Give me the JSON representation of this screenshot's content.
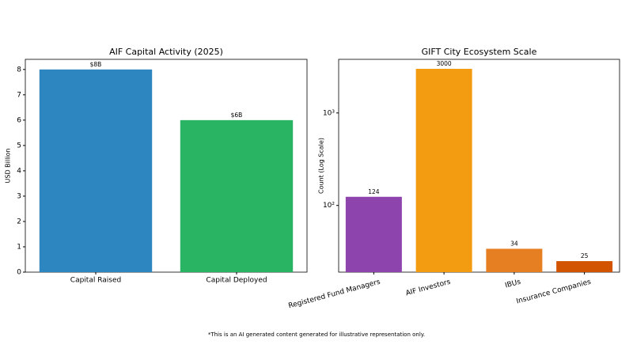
{
  "chart_data": [
    {
      "type": "bar",
      "title": "AIF Capital Activity (2025)",
      "ylabel": "USD Billion",
      "categories": [
        "Capital Raised",
        "Capital Deployed"
      ],
      "values": [
        8,
        6
      ],
      "value_labels": [
        "$8B",
        "$6B"
      ],
      "colors": [
        "#2e86c1",
        "#28b463"
      ],
      "ylim": [
        0,
        8.4
      ],
      "yticks": [
        0,
        1,
        2,
        3,
        4,
        5,
        6,
        7,
        8
      ],
      "log_scale": false
    },
    {
      "type": "bar",
      "title": "GIFT City Ecosystem Scale",
      "ylabel": "Count (Log Scale)",
      "categories": [
        "Registered Fund Managers",
        "AIF Investors",
        "IBUs",
        "Insurance Companies"
      ],
      "values": [
        124,
        3000,
        34,
        25
      ],
      "colors": [
        "#8e44ad",
        "#f39c12",
        "#e67e22",
        "#d35400"
      ],
      "ylim": [
        19,
        3800
      ],
      "yticks": [
        {
          "value": 100,
          "label": "10²"
        },
        {
          "value": 1000,
          "label": "10³"
        }
      ],
      "log_scale": true,
      "rotate_categories": true
    }
  ],
  "footnote": "*This is an AI generated content generated for illustrative representation only."
}
